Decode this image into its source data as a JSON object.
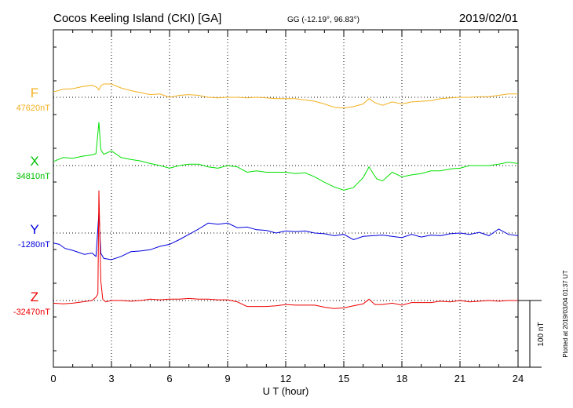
{
  "chart_data": {
    "type": "line",
    "header": {
      "title": "Cocos Keeling Island (CKI)  [GA]",
      "coords": "GG (-12.19°,  96.83°)",
      "date": "2019/02/01"
    },
    "xlabel": "U T (hour)",
    "xlim": [
      0,
      24
    ],
    "xticks": [
      "0",
      "3",
      "6",
      "9",
      "12",
      "15",
      "18",
      "21",
      "24"
    ],
    "scale_bar": {
      "label": "100 nT",
      "value": 100
    },
    "footer": "Plotted at 2019/03/04 01:37 UT",
    "series": [
      {
        "name": "F",
        "baseline_label": "47620nT",
        "baseline": 47620,
        "color": "#f2b01e",
        "x": [
          0,
          0.5,
          1,
          1.5,
          2,
          2.25,
          2.35,
          2.45,
          2.6,
          3,
          3.5,
          4,
          4.5,
          5,
          5.5,
          6,
          6.5,
          7,
          7.5,
          8,
          8.5,
          9,
          9.5,
          10,
          10.5,
          11,
          11.5,
          12,
          12.5,
          13,
          13.5,
          14,
          14.5,
          15,
          15.5,
          16,
          16.3,
          16.6,
          17,
          17.5,
          18,
          18.5,
          19,
          19.5,
          20,
          20.5,
          21,
          21.5,
          22,
          22.5,
          23,
          23.5,
          24
        ],
        "values": [
          47628,
          47632,
          47633,
          47636,
          47638,
          47635,
          47631,
          47637,
          47640,
          47640,
          47634,
          47630,
          47627,
          47624,
          47625,
          47620,
          47623,
          47624,
          47623,
          47620,
          47619,
          47620,
          47620,
          47619,
          47620,
          47619,
          47618,
          47618,
          47618,
          47616,
          47614,
          47610,
          47605,
          47604,
          47606,
          47610,
          47618,
          47612,
          47608,
          47613,
          47610,
          47613,
          47614,
          47615,
          47618,
          47619,
          47620,
          47620,
          47621,
          47621,
          47623,
          47625,
          47625
        ]
      },
      {
        "name": "X",
        "baseline_label": "34810nT",
        "baseline": 34810,
        "color": "#00e000",
        "x": [
          0,
          0.5,
          1,
          1.5,
          2,
          2.2,
          2.35,
          2.45,
          2.6,
          3,
          3.5,
          4,
          4.5,
          5,
          5.5,
          6,
          6.5,
          7,
          7.5,
          8,
          8.5,
          9,
          9.5,
          10,
          10.5,
          11,
          11.5,
          12,
          12.5,
          13,
          13.5,
          14,
          14.5,
          15,
          15.5,
          16,
          16.3,
          16.7,
          17,
          17.5,
          18,
          18.5,
          19,
          19.5,
          20,
          20.5,
          21,
          21.5,
          22,
          22.5,
          23,
          23.5,
          24
        ],
        "values": [
          34816,
          34822,
          34821,
          34824,
          34826,
          34828,
          34875,
          34834,
          34827,
          34832,
          34822,
          34819,
          34817,
          34813,
          34810,
          34806,
          34810,
          34812,
          34812,
          34808,
          34806,
          34810,
          34808,
          34800,
          34802,
          34800,
          34800,
          34800,
          34798,
          34799,
          34793,
          34785,
          34778,
          34773,
          34777,
          34792,
          34808,
          34790,
          34787,
          34800,
          34793,
          34796,
          34798,
          34802,
          34802,
          34805,
          34806,
          34810,
          34810,
          34810,
          34812,
          34815,
          34813
        ]
      },
      {
        "name": "Y",
        "baseline_label": "-1280nT",
        "baseline": -1280,
        "color": "#0000dd",
        "x": [
          0,
          0.3,
          0.6,
          1,
          1.3,
          1.6,
          2,
          2.2,
          2.35,
          2.45,
          2.6,
          3,
          3.5,
          4,
          4.5,
          5,
          5.5,
          6,
          6.5,
          7,
          7.5,
          8,
          8.5,
          9,
          9.5,
          10,
          10.5,
          11,
          11.5,
          12,
          12.5,
          13,
          13.5,
          14,
          14.5,
          15,
          15.5,
          16,
          16.5,
          17,
          17.5,
          18,
          18.5,
          19,
          19.5,
          20,
          20.5,
          21,
          21.5,
          22,
          22.5,
          23,
          23.5,
          24
        ],
        "values": [
          -1295,
          -1297,
          -1303,
          -1306,
          -1309,
          -1312,
          -1310,
          -1315,
          -1250,
          -1310,
          -1318,
          -1320,
          -1315,
          -1308,
          -1307,
          -1305,
          -1300,
          -1297,
          -1290,
          -1282,
          -1274,
          -1265,
          -1267,
          -1265,
          -1272,
          -1271,
          -1275,
          -1276,
          -1280,
          -1277,
          -1278,
          -1277,
          -1280,
          -1281,
          -1284,
          -1282,
          -1290,
          -1285,
          -1284,
          -1283,
          -1285,
          -1287,
          -1282,
          -1286,
          -1283,
          -1284,
          -1281,
          -1280,
          -1282,
          -1279,
          -1284,
          -1274,
          -1282,
          -1284
        ]
      },
      {
        "name": "Z",
        "baseline_label": "-32470nT",
        "baseline": -32470,
        "color": "#ee0000",
        "x": [
          0,
          0.5,
          1,
          1.5,
          2,
          2.2,
          2.3,
          2.35,
          2.45,
          2.55,
          2.7,
          3,
          3.5,
          4,
          4.5,
          5,
          5.5,
          6,
          6.5,
          7,
          7.5,
          8,
          8.5,
          9,
          9.5,
          10,
          10.5,
          11,
          11.5,
          12,
          12.5,
          13,
          13.5,
          14,
          14.5,
          15,
          15.5,
          16,
          16.3,
          16.6,
          17,
          17.5,
          18,
          18.5,
          19,
          19.5,
          20,
          20.5,
          21,
          21.5,
          22,
          22.5,
          23,
          23.5,
          24
        ],
        "values": [
          -32474,
          -32475,
          -32474,
          -32472,
          -32470,
          -32465,
          -32460,
          -32305,
          -32440,
          -32468,
          -32472,
          -32470,
          -32470,
          -32471,
          -32470,
          -32468,
          -32469,
          -32468,
          -32468,
          -32467,
          -32468,
          -32468,
          -32469,
          -32469,
          -32472,
          -32479,
          -32479,
          -32479,
          -32478,
          -32476,
          -32477,
          -32477,
          -32477,
          -32480,
          -32482,
          -32481,
          -32478,
          -32475,
          -32468,
          -32476,
          -32476,
          -32474,
          -32477,
          -32473,
          -32473,
          -32473,
          -32471,
          -32472,
          -32470,
          -32472,
          -32471,
          -32470,
          -32471,
          -32470,
          -32470
        ]
      }
    ]
  }
}
